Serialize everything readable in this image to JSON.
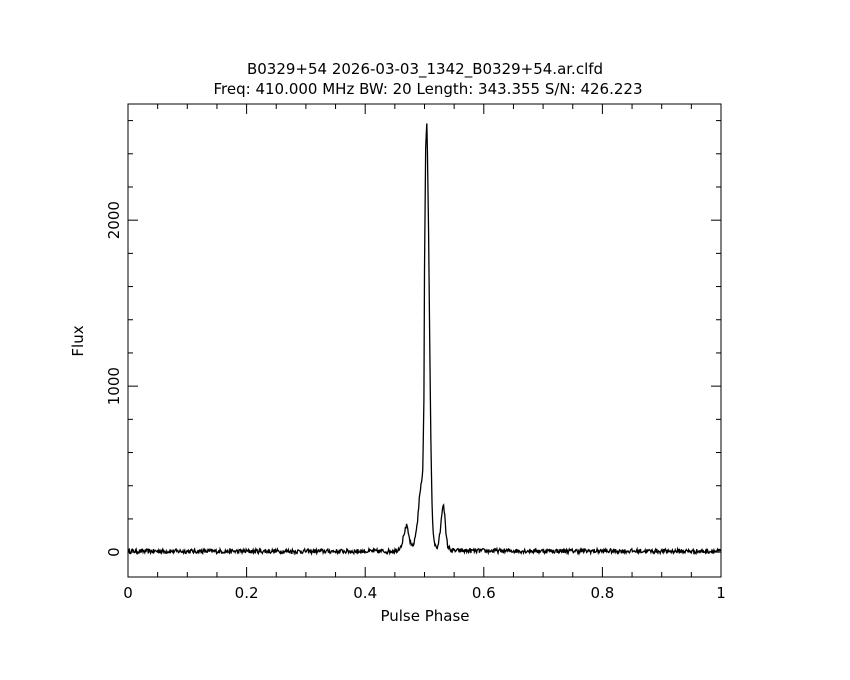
{
  "chart_data": {
    "type": "line",
    "title": "B0329+54 2026-03-03_1342_B0329+54.ar.clfd",
    "subtitle": "Freq: 410.000 MHz BW: 20 Length: 343.355 S/N: 426.223",
    "xlabel": "Pulse Phase",
    "ylabel": "Flux",
    "xlim": [
      0,
      1
    ],
    "ylim": [
      -150,
      2700
    ],
    "x_ticks": [
      {
        "value": 0,
        "label": "0"
      },
      {
        "value": 0.2,
        "label": "0.2"
      },
      {
        "value": 0.4,
        "label": "0.4"
      },
      {
        "value": 0.6,
        "label": "0.6"
      },
      {
        "value": 0.8,
        "label": "0.8"
      },
      {
        "value": 1,
        "label": "1"
      }
    ],
    "y_ticks": [
      {
        "value": 0,
        "label": "0"
      },
      {
        "value": 1000,
        "label": "1000"
      },
      {
        "value": 2000,
        "label": "2000"
      }
    ],
    "grid": false,
    "series": [
      {
        "color": "#000000",
        "x": [
          0,
          0.44,
          0.455,
          0.462,
          0.466,
          0.47,
          0.474,
          0.478,
          0.483,
          0.488,
          0.492,
          0.495,
          0.497,
          0.499,
          0.5,
          0.502,
          0.504,
          0.505,
          0.507,
          0.509,
          0.511,
          0.513,
          0.515,
          0.518,
          0.521,
          0.524,
          0.527,
          0.53,
          0.532,
          0.534,
          0.536,
          0.539,
          0.543,
          0.55,
          1
        ],
        "y": [
          5,
          5,
          12,
          50,
          120,
          160,
          90,
          30,
          60,
          180,
          350,
          420,
          480,
          900,
          1700,
          2450,
          2590,
          2400,
          1900,
          1200,
          600,
          250,
          100,
          40,
          20,
          60,
          140,
          260,
          300,
          230,
          110,
          40,
          15,
          8,
          5
        ]
      }
    ]
  }
}
